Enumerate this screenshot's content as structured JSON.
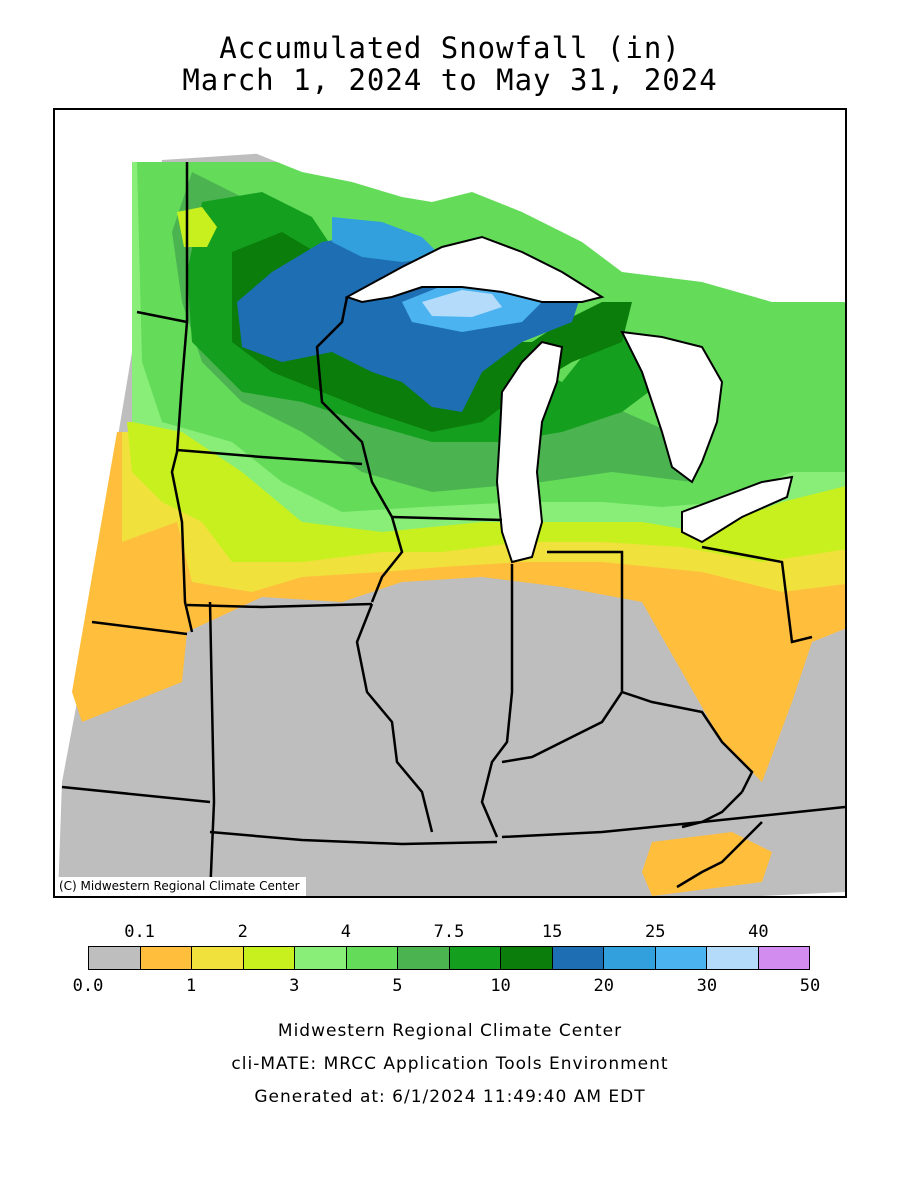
{
  "title": {
    "line1": "Accumulated Snowfall (in)",
    "line2": "March 1, 2024 to May 31, 2024"
  },
  "map": {
    "copyright": "(C) Midwestern Regional Climate Center",
    "regions_depicted": [
      "Minnesota",
      "Wisconsin",
      "Michigan",
      "Iowa",
      "Illinois",
      "Indiana",
      "Ohio",
      "Missouri",
      "Kentucky"
    ]
  },
  "legend": {
    "colors": [
      "#bebebe",
      "#ffbe3c",
      "#f0e13c",
      "#c8f01e",
      "#88ee78",
      "#64dc5a",
      "#4bb450",
      "#14a01e",
      "#0a7d0a",
      "#1e6eb4",
      "#32a0dc",
      "#4bb4f0",
      "#b4dcfa",
      "#d28cf0"
    ],
    "top_labels": [
      {
        "text": "0.1",
        "value": 0.1,
        "i": 1
      },
      {
        "text": "2",
        "value": 2,
        "i": 3
      },
      {
        "text": "4",
        "value": 4,
        "i": 5
      },
      {
        "text": "7.5",
        "value": 7.5,
        "i": 7
      },
      {
        "text": "15",
        "value": 15,
        "i": 9
      },
      {
        "text": "25",
        "value": 25,
        "i": 11
      },
      {
        "text": "40",
        "value": 40,
        "i": 13
      }
    ],
    "bottom_labels": [
      {
        "text": "0.0",
        "value": 0,
        "i": 0
      },
      {
        "text": "1",
        "value": 1,
        "i": 2
      },
      {
        "text": "3",
        "value": 3,
        "i": 4
      },
      {
        "text": "5",
        "value": 5,
        "i": 6
      },
      {
        "text": "10",
        "value": 10,
        "i": 8
      },
      {
        "text": "20",
        "value": 20,
        "i": 10
      },
      {
        "text": "30",
        "value": 30,
        "i": 12
      },
      {
        "text": "50",
        "value": 50,
        "i": 14
      }
    ]
  },
  "footer": {
    "line1": "Midwestern Regional Climate Center",
    "line2": "cli-MATE: MRCC Application Tools Environment",
    "line3": "Generated at: 6/1/2024 11:49:40 AM EDT"
  }
}
